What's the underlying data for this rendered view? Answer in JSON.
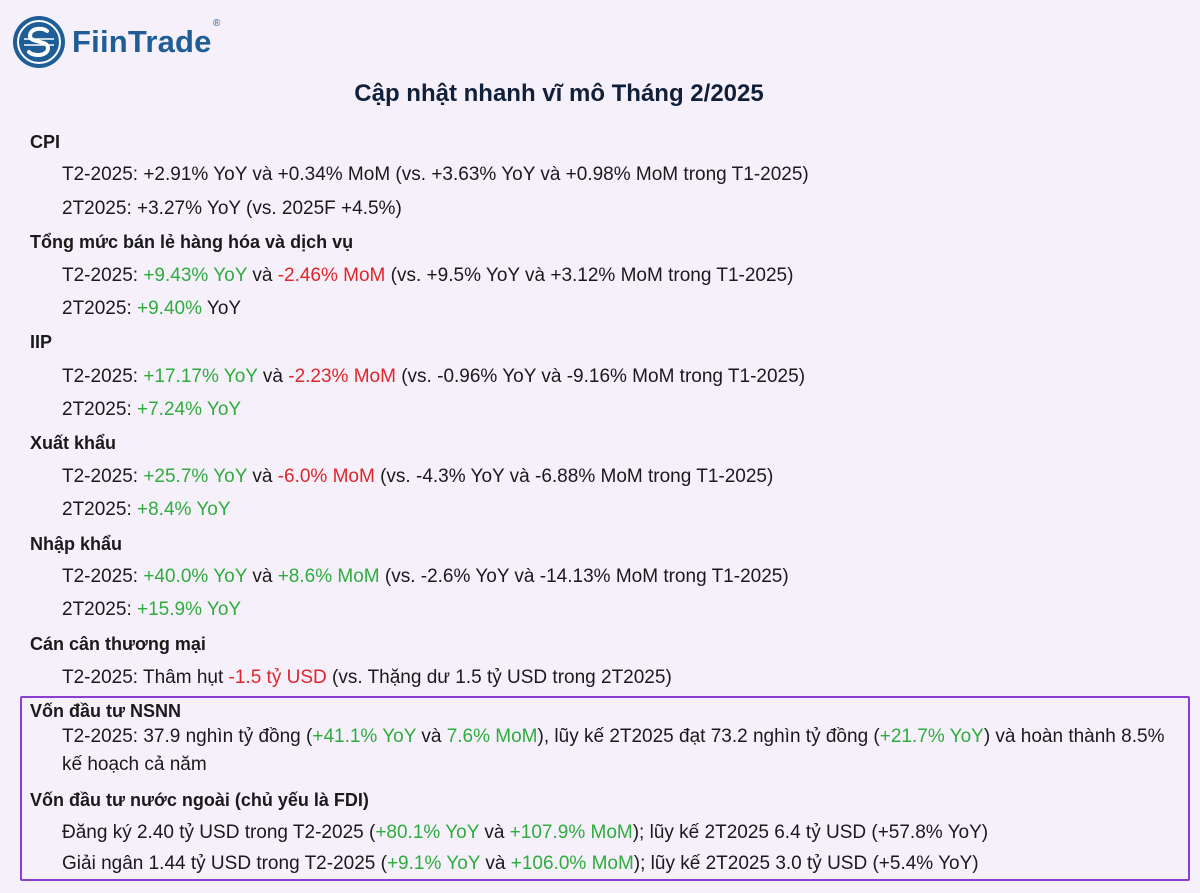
{
  "logo": {
    "brand": "FiinTrade",
    "reg": "®"
  },
  "title": "Cập nhật nhanh vĩ mô Tháng 2/2025",
  "sections": [
    {
      "heading": "CPI",
      "lines": [
        [
          {
            "t": "T2-2025: +2.91% YoY và +0.34% MoM (vs. +3.63% YoY và +0.98% MoM trong T1-2025)",
            "c": ""
          }
        ],
        [
          {
            "t": "2T2025: +3.27% YoY (vs. 2025F +4.5%)",
            "c": ""
          }
        ]
      ]
    },
    {
      "heading": "Tổng mức bán lẻ hàng hóa và dịch vụ",
      "lines": [
        [
          {
            "t": "T2-2025: ",
            "c": ""
          },
          {
            "t": "+9.43% YoY",
            "c": "g"
          },
          {
            "t": " và ",
            "c": ""
          },
          {
            "t": "-2.46% MoM",
            "c": "r"
          },
          {
            "t": " (vs. +9.5% YoY và +3.12% MoM trong T1-2025)",
            "c": ""
          }
        ],
        [
          {
            "t": "2T2025: ",
            "c": ""
          },
          {
            "t": "+9.40%",
            "c": "g"
          },
          {
            "t": " YoY",
            "c": ""
          }
        ]
      ]
    },
    {
      "heading": "IIP",
      "lines": [
        [
          {
            "t": "T2-2025: ",
            "c": ""
          },
          {
            "t": "+17.17% YoY",
            "c": "g"
          },
          {
            "t": " và ",
            "c": ""
          },
          {
            "t": "-2.23% MoM",
            "c": "r"
          },
          {
            "t": " (vs. -0.96% YoY và -9.16% MoM trong T1-2025)",
            "c": ""
          }
        ],
        [
          {
            "t": "2T2025: ",
            "c": ""
          },
          {
            "t": "+7.24% YoY",
            "c": "g"
          }
        ]
      ]
    },
    {
      "heading": "Xuất khẩu",
      "lines": [
        [
          {
            "t": "T2-2025: ",
            "c": ""
          },
          {
            "t": "+25.7% YoY",
            "c": "g"
          },
          {
            "t": " và ",
            "c": ""
          },
          {
            "t": "-6.0% MoM",
            "c": "r"
          },
          {
            "t": " (vs. -4.3% YoY và -6.88% MoM trong T1-2025)",
            "c": ""
          }
        ],
        [
          {
            "t": "2T2025: ",
            "c": ""
          },
          {
            "t": "+8.4% YoY",
            "c": "g"
          }
        ]
      ]
    },
    {
      "heading": "Nhập khẩu",
      "lines": [
        [
          {
            "t": "T2-2025: ",
            "c": ""
          },
          {
            "t": "+40.0% YoY",
            "c": "g"
          },
          {
            "t": " và ",
            "c": ""
          },
          {
            "t": "+8.6% MoM",
            "c": "g"
          },
          {
            "t": " (vs. -2.6% YoY và -14.13% MoM trong T1-2025)",
            "c": ""
          }
        ],
        [
          {
            "t": "2T2025: ",
            "c": ""
          },
          {
            "t": "+15.9% YoY",
            "c": "g"
          }
        ]
      ]
    },
    {
      "heading": "Cán cân thương mại",
      "lines": [
        [
          {
            "t": "T2-2025: Thâm hụt ",
            "c": ""
          },
          {
            "t": "-1.5 tỷ USD",
            "c": "r"
          },
          {
            "t": " (vs. Thặng dư  1.5 tỷ USD trong 2T2025)",
            "c": ""
          }
        ]
      ]
    }
  ],
  "boxed": [
    {
      "heading": "Vốn đầu tư NSNN",
      "lines": [
        [
          {
            "t": "T2-2025: 37.9 nghìn tỷ đồng (",
            "c": ""
          },
          {
            "t": "+41.1% YoY",
            "c": "g"
          },
          {
            "t": " và ",
            "c": ""
          },
          {
            "t": "7.6% MoM",
            "c": "g"
          },
          {
            "t": "), lũy kế 2T2025 đạt 73.2 nghìn tỷ đồng (",
            "c": ""
          },
          {
            "t": "+21.7% YoY",
            "c": "g"
          },
          {
            "t": ") và hoàn thành 8.5% kế hoạch cả năm",
            "c": ""
          }
        ]
      ]
    },
    {
      "heading": "Vốn đầu tư nước ngoài (chủ yếu là FDI)",
      "lines": [
        [
          {
            "t": "Đăng ký 2.40 tỷ USD trong T2-2025 (",
            "c": ""
          },
          {
            "t": "+80.1% YoY",
            "c": "g"
          },
          {
            "t": " và ",
            "c": ""
          },
          {
            "t": "+107.9% MoM",
            "c": "g"
          },
          {
            "t": "); lũy kế 2T2025 6.4 tỷ USD (+57.8% YoY)",
            "c": ""
          }
        ],
        [
          {
            "t": "Giải ngân 1.44 tỷ USD trong T2-2025 (",
            "c": ""
          },
          {
            "t": "+9.1% YoY",
            "c": "g"
          },
          {
            "t": " và ",
            "c": ""
          },
          {
            "t": "+106.0% MoM",
            "c": "g"
          },
          {
            "t": "); lũy kế 2T2025 3.0 tỷ USD (+5.4% YoY)",
            "c": ""
          }
        ]
      ]
    }
  ]
}
